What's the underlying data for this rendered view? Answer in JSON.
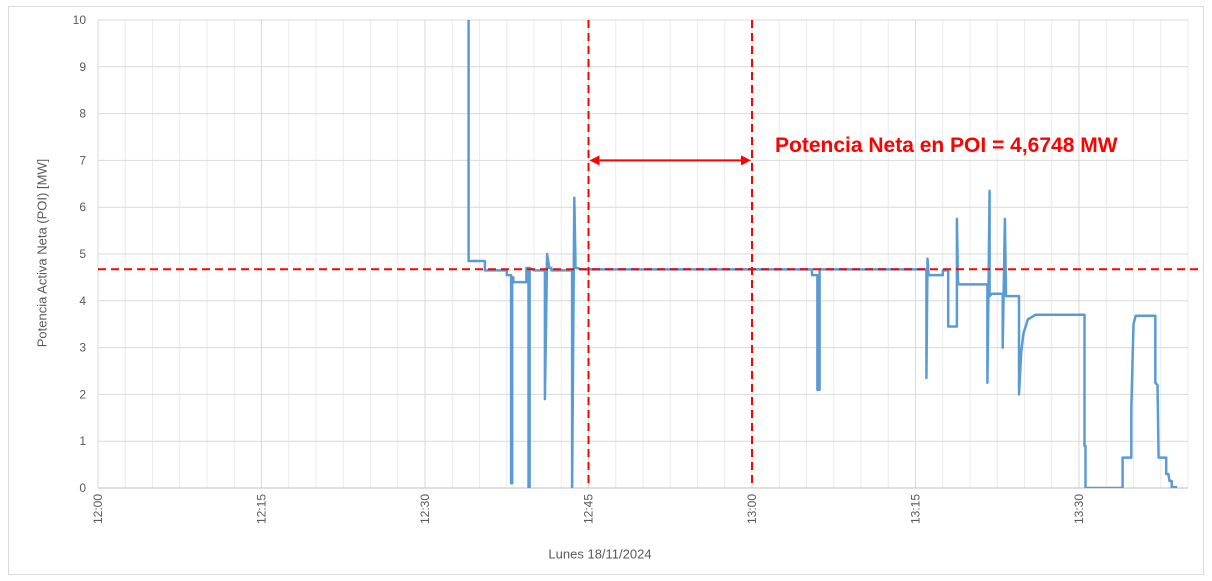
{
  "chart_data": {
    "type": "line",
    "title": "",
    "xlabel": "Lunes 18/11/2024",
    "ylabel": "Potencia Activa Neta (POI) [MW]",
    "xlim": [
      "12:00",
      "13:40"
    ],
    "ylim": [
      0,
      10
    ],
    "x_ticks": [
      "12:00",
      "12:15",
      "12:30",
      "12:45",
      "13:00",
      "13:15",
      "13:30"
    ],
    "y_ticks": [
      0,
      1,
      2,
      3,
      4,
      5,
      6,
      7,
      8,
      9,
      10
    ],
    "grid": true,
    "legend": "none",
    "annotation": "Potencia Neta en POI = 4,6748 MW",
    "reference_lines": {
      "horizontal_y": 4.6748,
      "vertical_x": [
        "12:45",
        "13:00"
      ]
    },
    "colors": {
      "series": "#5b9bd5",
      "reference": "#ff0000",
      "grid": "#d9d9d9"
    },
    "series": [
      {
        "x": [
          "12:34",
          "12:34",
          "12:34",
          "12:34",
          "12:34.2",
          "12:35.5",
          "12:35.5",
          "12:37.5",
          "12:37.5",
          "12:37.9",
          "12:37.9",
          "12:38",
          "12:38",
          "12:38.1",
          "12:38.1",
          "12:38.5",
          "12:39.3",
          "12:39.3",
          "12:39.5",
          "12:39.5",
          "12:39.6",
          "12:39.6",
          "12:40",
          "12:41",
          "12:41",
          "12:41.2",
          "12:41.4",
          "12:41.6",
          "12:41.6",
          "12:42",
          "12:43.5",
          "12:43.5",
          "12:43.7",
          "12:43.8",
          "12:43.8",
          "12:44",
          "12:44.3",
          "13:05.5",
          "13:05.5",
          "13:06",
          "13:06",
          "13:06.2",
          "13:06.2",
          "13:15.5",
          "13:16",
          "13:16",
          "13:16.1",
          "13:16.2",
          "13:16.3",
          "13:16.6",
          "13:17.5",
          "13:17.5",
          "13:18",
          "13:18",
          "13:18.3",
          "13:18.8",
          "13:18.8",
          "13:18.9",
          "13:19",
          "13:19.1",
          "13:21.6",
          "13:21.6",
          "13:21.8",
          "13:21.8",
          "13:22",
          "13:22",
          "13:23",
          "13:23",
          "13:23.2",
          "13:23.3",
          "13:23.4",
          "13:24.5",
          "13:24.5",
          "13:24.7",
          "13:24.9",
          "13:25.3",
          "13:26",
          "13:28",
          "13:30.5",
          "13:30.5",
          "13:30.6",
          "13:30.6",
          "13:34",
          "13:34",
          "13:34.8",
          "13:34.8",
          "13:35",
          "13:35.2",
          "13:35.5",
          "13:37",
          "13:37",
          "13:37.2",
          "13:37.3",
          "13:38",
          "13:38",
          "13:38.2",
          "13:38.3",
          "13:38.3",
          "13:38.5",
          "13:38.5",
          "13:39"
        ],
        "y": [
          10,
          7.7,
          7.7,
          4.85,
          4.85,
          4.85,
          4.65,
          4.65,
          4.55,
          4.55,
          0.1,
          0.1,
          4.5,
          4.5,
          4.4,
          4.4,
          4.4,
          4.7,
          4.7,
          0,
          0,
          4.7,
          4.65,
          4.65,
          1.9,
          5.0,
          4.7,
          4.7,
          4.65,
          4.65,
          4.65,
          0,
          6.2,
          4.9,
          4.7,
          4.7,
          4.67,
          4.67,
          4.55,
          4.55,
          2.1,
          2.1,
          4.67,
          4.67,
          4.67,
          2.35,
          4.9,
          4.55,
          4.55,
          4.55,
          4.55,
          4.65,
          4.65,
          3.45,
          3.45,
          3.45,
          5.75,
          4.4,
          4.35,
          4.35,
          4.35,
          2.25,
          6.35,
          4.1,
          4.15,
          4.15,
          4.15,
          3.0,
          5.75,
          4.1,
          4.1,
          4.1,
          2.0,
          2.9,
          3.3,
          3.6,
          3.7,
          3.7,
          3.7,
          0.9,
          0.9,
          0,
          0,
          0.65,
          0.65,
          1.7,
          3.5,
          3.68,
          3.68,
          3.68,
          2.25,
          2.2,
          0.65,
          0.65,
          0.3,
          0.3,
          0.15,
          0.15,
          0.15,
          0.02,
          0.02
        ]
      }
    ]
  }
}
